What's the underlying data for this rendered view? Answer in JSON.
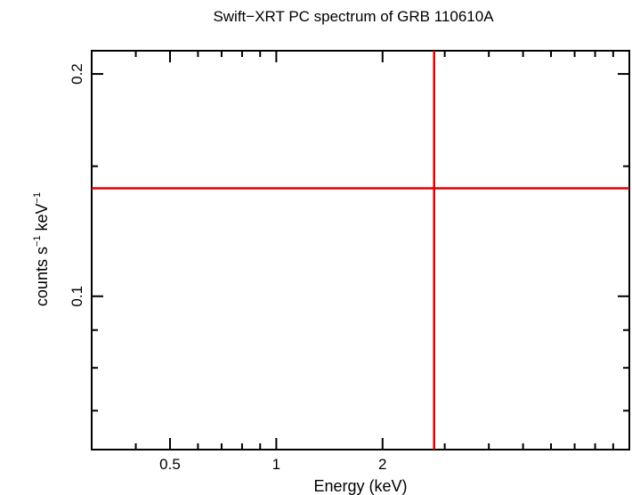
{
  "chart_data": {
    "type": "scatter",
    "title": "Swift−XRT PC spectrum of GRB 110610A",
    "xlabel": "Energy (keV)",
    "ylabel_main": "counts s",
    "ylabel_sup1": "−1",
    "ylabel_mid": " keV",
    "ylabel_sup2": "−1",
    "x_scale": "log",
    "y_scale": "log",
    "xlim": [
      0.3,
      10
    ],
    "ylim": [
      0.062,
      0.215
    ],
    "x_major_ticks": [
      {
        "value": 0.5,
        "label": "0.5"
      },
      {
        "value": 1,
        "label": "1"
      },
      {
        "value": 2,
        "label": "2"
      }
    ],
    "x_minor_ticks": [
      0.4,
      0.6,
      0.7,
      0.8,
      0.9,
      3,
      4,
      5,
      6,
      7,
      8,
      9
    ],
    "y_major_ticks": [
      {
        "value": 0.1,
        "label": "0.1"
      },
      {
        "value": 0.2,
        "label": "0.2"
      }
    ],
    "y_minor_ticks": [
      0.07,
      0.08,
      0.09,
      0.15
    ],
    "grid": false,
    "points": [
      {
        "x": 2.8,
        "x_err_low": 2.5,
        "x_err_high": 7.2,
        "y": 0.14,
        "y_err_low": 0.078,
        "y_err_high": 0.134
      }
    ],
    "point_color": "#e00000"
  }
}
